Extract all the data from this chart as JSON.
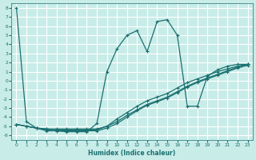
{
  "xlabel": "Humidex (Indice chaleur)",
  "bg_color": "#c8ece8",
  "grid_color": "#ffffff",
  "line_color": "#1a7070",
  "xlim": [
    -0.5,
    23.5
  ],
  "ylim": [
    -6.5,
    8.5
  ],
  "x_ticks": [
    0,
    1,
    2,
    3,
    4,
    5,
    6,
    7,
    8,
    9,
    10,
    11,
    12,
    13,
    14,
    15,
    16,
    17,
    18,
    19,
    20,
    21,
    22,
    23
  ],
  "y_ticks": [
    8,
    7,
    6,
    5,
    4,
    3,
    2,
    1,
    0,
    -1,
    -2,
    -3,
    -4,
    -5,
    -6
  ],
  "curve1_x": [
    0,
    1,
    2,
    3,
    4,
    5,
    6,
    7,
    8,
    9,
    10,
    11,
    12,
    13,
    14,
    15,
    16,
    17,
    18,
    19,
    20,
    21,
    22,
    23
  ],
  "curve1_y": [
    8.0,
    -4.5,
    -5.2,
    -5.5,
    -5.5,
    -5.6,
    -5.6,
    -5.6,
    -4.7,
    1.0,
    3.5,
    5.0,
    5.5,
    3.2,
    6.5,
    6.7,
    5.0,
    -2.8,
    -2.8,
    0.5,
    1.2,
    1.6,
    1.8,
    1.8
  ],
  "curve2_x": [
    0,
    1,
    2,
    3,
    4,
    5,
    6,
    7,
    8,
    9,
    10,
    11,
    12,
    13,
    14,
    15,
    16,
    17,
    18,
    19,
    20,
    21,
    22,
    23
  ],
  "curve2_y": [
    -4.8,
    -5.0,
    -5.2,
    -5.3,
    -5.3,
    -5.3,
    -5.3,
    -5.3,
    -5.3,
    -5.0,
    -4.5,
    -3.8,
    -3.2,
    -2.6,
    -2.2,
    -1.8,
    -1.2,
    -0.6,
    -0.1,
    0.3,
    0.7,
    1.1,
    1.5,
    1.8
  ],
  "curve3_x": [
    0,
    1,
    2,
    3,
    4,
    5,
    6,
    7,
    8,
    9,
    10,
    11,
    12,
    13,
    14,
    15,
    16,
    17,
    18,
    19,
    20,
    21,
    22,
    23
  ],
  "curve3_y": [
    -4.8,
    -5.0,
    -5.2,
    -5.3,
    -5.4,
    -5.4,
    -5.4,
    -5.4,
    -5.4,
    -5.0,
    -4.2,
    -3.5,
    -2.8,
    -2.2,
    -1.8,
    -1.4,
    -0.8,
    -0.2,
    0.2,
    0.6,
    1.0,
    1.3,
    1.6,
    1.8
  ],
  "curve4_x": [
    0,
    1,
    2,
    3,
    4,
    5,
    6,
    7,
    8,
    9,
    10,
    11,
    12,
    13,
    14,
    15,
    16,
    17,
    18,
    19,
    20,
    21,
    22,
    23
  ],
  "curve4_y": [
    -4.8,
    -5.0,
    -5.2,
    -5.4,
    -5.5,
    -5.5,
    -5.5,
    -5.5,
    -5.5,
    -5.2,
    -4.7,
    -4.0,
    -3.3,
    -2.7,
    -2.3,
    -1.9,
    -1.3,
    -0.7,
    -0.2,
    0.2,
    0.6,
    1.0,
    1.4,
    1.7
  ]
}
